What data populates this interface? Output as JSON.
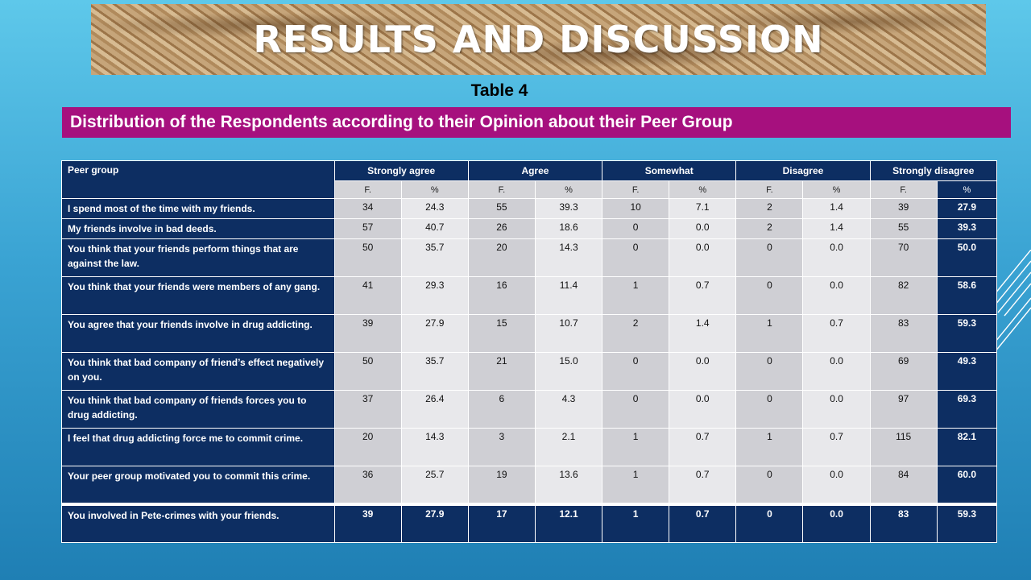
{
  "title": "RESULTS AND DISCUSSION",
  "table_label": "Table 4",
  "subtitle": "Distribution of the Respondents according to their Opinion about their Peer Group",
  "table": {
    "first_header": "Peer group",
    "groups": [
      "Strongly agree",
      "Agree",
      "Somewhat",
      "Disagree",
      "Strongly disagree"
    ],
    "sub_f": "F.",
    "sub_pct": "%",
    "rows": [
      {
        "label": "I spend most of the time with my friends.",
        "v": [
          "34",
          "24.3",
          "55",
          "39.3",
          "10",
          "7.1",
          "2",
          "1.4",
          "39",
          "27.9"
        ]
      },
      {
        "label": "My friends involve in bad deeds.",
        "v": [
          "57",
          "40.7",
          "26",
          "18.6",
          "0",
          "0.0",
          "2",
          "1.4",
          "55",
          "39.3"
        ]
      },
      {
        "label": "You think that your friends perform things that are against the law.",
        "v": [
          "50",
          "35.7",
          "20",
          "14.3",
          "0",
          "0.0",
          "0",
          "0.0",
          "70",
          "50.0"
        ]
      },
      {
        "label": "You think that your friends were members  of any gang.",
        "v": [
          "41",
          "29.3",
          "16",
          "11.4",
          "1",
          "0.7",
          "0",
          "0.0",
          "82",
          "58.6"
        ]
      },
      {
        "label": "You agree that your friends involve  in drug addicting.",
        "v": [
          "39",
          "27.9",
          "15",
          "10.7",
          "2",
          "1.4",
          "1",
          "0.7",
          "83",
          "59.3"
        ]
      },
      {
        "label": "You think that bad company of friend’s effect negatively on you.",
        "v": [
          "50",
          "35.7",
          "21",
          "15.0",
          "0",
          "0.0",
          "0",
          "0.0",
          "69",
          "49.3"
        ]
      },
      {
        "label": "You think that bad company of friends forces you to drug addicting.",
        "v": [
          "37",
          "26.4",
          "6",
          "4.3",
          "0",
          "0.0",
          "0",
          "0.0",
          "97",
          "69.3"
        ]
      },
      {
        "label": "I feel that drug addicting force me to commit crime.",
        "v": [
          "20",
          "14.3",
          "3",
          "2.1",
          "1",
          "0.7",
          "1",
          "0.7",
          "115",
          "82.1"
        ]
      },
      {
        "label": "Your peer group motivated you to commit this crime.",
        "v": [
          "36",
          "25.7",
          "19",
          "13.6",
          "1",
          "0.7",
          "0",
          "0.0",
          "84",
          "60.0"
        ]
      }
    ],
    "total": {
      "label": "You involved  in Pete-crimes  with your friends.",
      "v": [
        "39",
        "27.9",
        "17",
        "12.1",
        "1",
        "0.7",
        "0",
        "0.0",
        "83",
        "59.3"
      ]
    }
  }
}
